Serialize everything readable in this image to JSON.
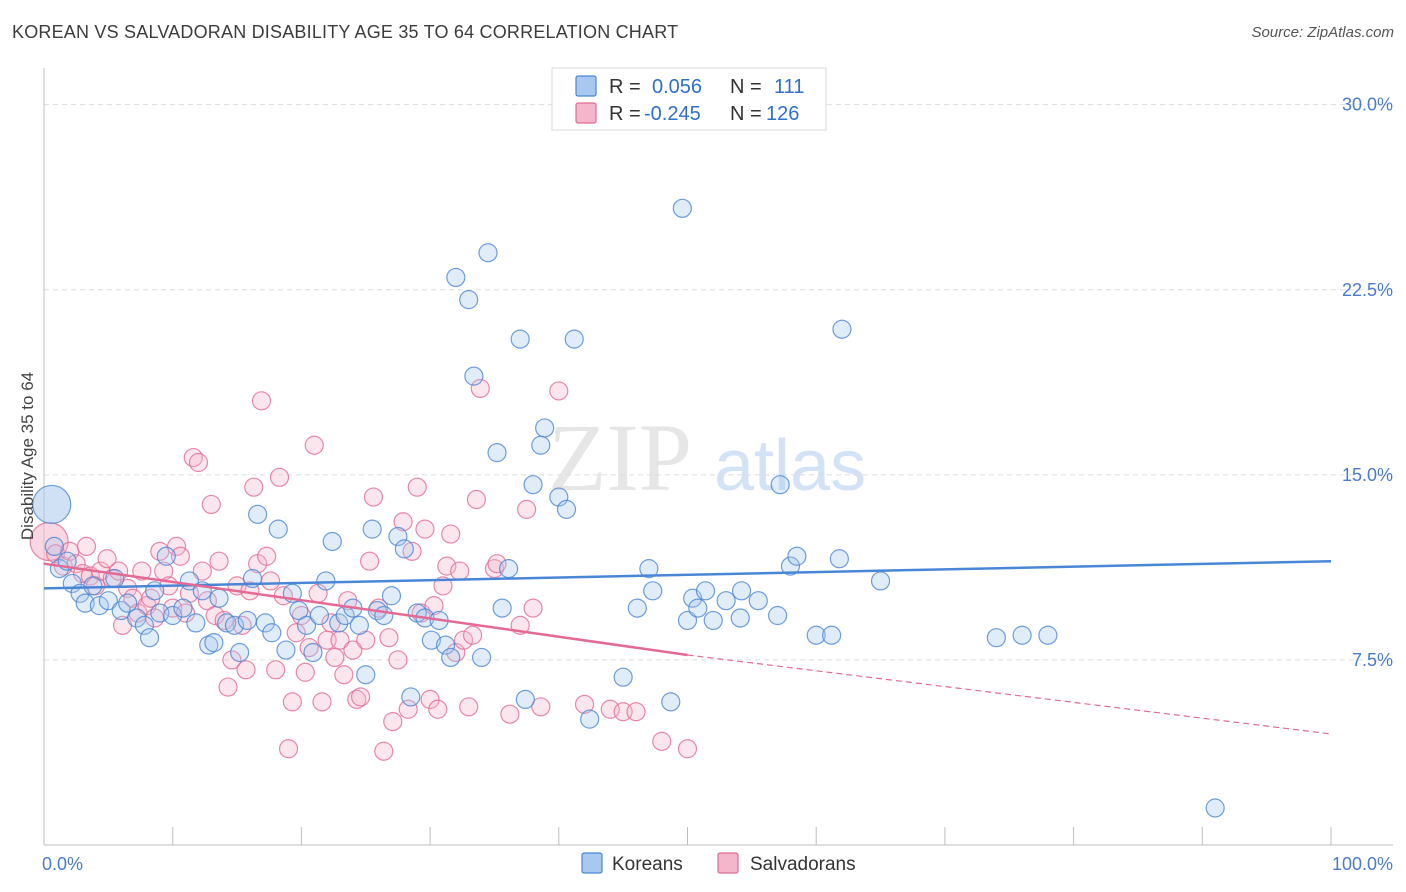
{
  "header": {
    "title": "KOREAN VS SALVADORAN DISABILITY AGE 35 TO 64 CORRELATION CHART",
    "source": "Source: ZipAtlas.com"
  },
  "watermark": {
    "zip": "ZIP",
    "atlas": "atlas"
  },
  "colors": {
    "korean": "#4a86d6",
    "korean_fill": "#a9c8ef",
    "salvadoran": "#e46a95",
    "salvadoran_fill": "#f4b6cb",
    "tick_label": "#4a7bd0",
    "grid": "#dddddd"
  },
  "legend": {
    "r_label": "R =",
    "n_label": "N =",
    "korean_r": "0.056",
    "korean_n": "111",
    "salvadoran_r": "-0.245",
    "salvadoran_n": "126"
  },
  "bottom_legend": {
    "korean": "Koreans",
    "salvadoran": "Salvadorans"
  },
  "chart_data": {
    "type": "scatter",
    "title": "KOREAN VS SALVADORAN DISABILITY AGE 35 TO 64 CORRELATION CHART",
    "xlabel": "",
    "ylabel": "Disability Age 35 to 64",
    "xlim": [
      0,
      100
    ],
    "ylim": [
      0,
      31
    ],
    "x_tick_labels": [
      "0.0%",
      "100.0%"
    ],
    "y_ticks": [
      7.5,
      15.0,
      22.5,
      30.0
    ],
    "y_tick_labels": [
      "7.5%",
      "15.0%",
      "22.5%",
      "30.0%"
    ],
    "grid": "horizontal dashed",
    "legend_position": "top-center",
    "series": [
      {
        "name": "Koreans",
        "r": 0.056,
        "n": 111,
        "trend": {
          "x": [
            0,
            100
          ],
          "y": [
            10.4,
            11.5
          ],
          "dashed_from": null
        },
        "points": [
          [
            0.6,
            13.8,
            1
          ],
          [
            0.8,
            12.1,
            0
          ],
          [
            1.2,
            11.2,
            0
          ],
          [
            1.8,
            11.5,
            0
          ],
          [
            2.2,
            10.6,
            0
          ],
          [
            2.8,
            10.2,
            0
          ],
          [
            3.2,
            9.8,
            0
          ],
          [
            3.8,
            10.5,
            0
          ],
          [
            4.3,
            9.7,
            0
          ],
          [
            5.0,
            9.9,
            0
          ],
          [
            5.5,
            10.8,
            0
          ],
          [
            6.0,
            9.5,
            0
          ],
          [
            6.5,
            9.8,
            0
          ],
          [
            7.2,
            9.2,
            0
          ],
          [
            7.8,
            8.9,
            0
          ],
          [
            8.2,
            8.4,
            0
          ],
          [
            8.6,
            10.3,
            0
          ],
          [
            9.0,
            9.4,
            0
          ],
          [
            9.5,
            11.7,
            0
          ],
          [
            10.0,
            9.3,
            0
          ],
          [
            10.8,
            9.6,
            0
          ],
          [
            11.3,
            10.7,
            0
          ],
          [
            11.8,
            9.0,
            0
          ],
          [
            12.3,
            10.3,
            0
          ],
          [
            12.8,
            8.1,
            0
          ],
          [
            13.2,
            8.2,
            0
          ],
          [
            13.6,
            10.0,
            0
          ],
          [
            14.2,
            9.0,
            0
          ],
          [
            14.8,
            8.9,
            0
          ],
          [
            15.2,
            7.8,
            0
          ],
          [
            15.8,
            9.1,
            0
          ],
          [
            16.2,
            10.8,
            0
          ],
          [
            16.6,
            13.4,
            0
          ],
          [
            17.2,
            9.0,
            0
          ],
          [
            17.7,
            8.6,
            0
          ],
          [
            18.2,
            12.8,
            0
          ],
          [
            18.8,
            7.9,
            0
          ],
          [
            19.3,
            10.2,
            0
          ],
          [
            19.8,
            9.5,
            0
          ],
          [
            20.4,
            8.9,
            0
          ],
          [
            20.9,
            7.8,
            0
          ],
          [
            21.4,
            9.3,
            0
          ],
          [
            21.9,
            10.7,
            0
          ],
          [
            22.4,
            12.3,
            0
          ],
          [
            22.9,
            9.0,
            0
          ],
          [
            23.4,
            9.3,
            0
          ],
          [
            24.0,
            9.6,
            0
          ],
          [
            24.5,
            8.9,
            0
          ],
          [
            25.0,
            6.9,
            0
          ],
          [
            25.5,
            12.8,
            0
          ],
          [
            25.9,
            9.5,
            0
          ],
          [
            26.4,
            9.3,
            0
          ],
          [
            27.0,
            10.1,
            0
          ],
          [
            27.5,
            12.5,
            0
          ],
          [
            28.0,
            12.0,
            0
          ],
          [
            28.5,
            6.0,
            0
          ],
          [
            29.0,
            9.4,
            0
          ],
          [
            29.6,
            9.2,
            0
          ],
          [
            30.1,
            8.3,
            0
          ],
          [
            30.7,
            9.1,
            0
          ],
          [
            31.2,
            8.1,
            0
          ],
          [
            31.6,
            7.6,
            0
          ],
          [
            32.0,
            23.0,
            0
          ],
          [
            33.0,
            22.1,
            0
          ],
          [
            33.4,
            19.0,
            0
          ],
          [
            34.0,
            7.6,
            0
          ],
          [
            34.5,
            24.0,
            0
          ],
          [
            35.2,
            15.9,
            0
          ],
          [
            35.6,
            9.6,
            0
          ],
          [
            36.1,
            11.2,
            0
          ],
          [
            37.0,
            20.5,
            0
          ],
          [
            37.4,
            5.9,
            0
          ],
          [
            38.0,
            14.6,
            0
          ],
          [
            38.6,
            16.2,
            0
          ],
          [
            38.9,
            16.9,
            0
          ],
          [
            40.0,
            14.1,
            0
          ],
          [
            40.6,
            13.6,
            0
          ],
          [
            41.2,
            20.5,
            0
          ],
          [
            42.4,
            5.1,
            0
          ],
          [
            45.0,
            6.8,
            0
          ],
          [
            46.1,
            9.6,
            0
          ],
          [
            47.0,
            11.2,
            0
          ],
          [
            47.3,
            10.3,
            0
          ],
          [
            48.7,
            5.8,
            0
          ],
          [
            49.6,
            25.8,
            0
          ],
          [
            50.0,
            9.1,
            0
          ],
          [
            50.4,
            10.0,
            0
          ],
          [
            50.8,
            9.6,
            0
          ],
          [
            51.4,
            10.3,
            0
          ],
          [
            52.0,
            9.1,
            0
          ],
          [
            53.0,
            9.9,
            0
          ],
          [
            54.1,
            9.2,
            0
          ],
          [
            54.2,
            10.3,
            0
          ],
          [
            55.5,
            9.9,
            0
          ],
          [
            57.0,
            9.3,
            0
          ],
          [
            57.2,
            14.6,
            0
          ],
          [
            58.0,
            11.3,
            0
          ],
          [
            58.5,
            11.7,
            0
          ],
          [
            60.0,
            8.5,
            0
          ],
          [
            61.2,
            8.5,
            0
          ],
          [
            61.8,
            11.6,
            0
          ],
          [
            62.0,
            20.9,
            0
          ],
          [
            65.0,
            10.7,
            0
          ],
          [
            74.0,
            8.4,
            0
          ],
          [
            76.0,
            8.5,
            0
          ],
          [
            78.0,
            8.5,
            0
          ],
          [
            91.0,
            1.5,
            0
          ]
        ]
      },
      {
        "name": "Salvadorans",
        "r": -0.245,
        "n": 126,
        "trend": {
          "x": [
            0,
            50,
            100
          ],
          "y": [
            11.4,
            7.7,
            4.5
          ],
          "dashed_from": 50
        },
        "points": [
          [
            0.4,
            12.3,
            1
          ],
          [
            0.9,
            11.8,
            0
          ],
          [
            1.5,
            11.3,
            0
          ],
          [
            2.0,
            11.9,
            0
          ],
          [
            2.5,
            11.4,
            0
          ],
          [
            3.0,
            11.0,
            0
          ],
          [
            3.3,
            12.1,
            0
          ],
          [
            3.6,
            10.9,
            0
          ],
          [
            4.0,
            10.5,
            0
          ],
          [
            4.4,
            11.1,
            0
          ],
          [
            4.9,
            11.6,
            0
          ],
          [
            5.3,
            10.8,
            0
          ],
          [
            5.8,
            11.1,
            0
          ],
          [
            6.1,
            8.9,
            0
          ],
          [
            6.5,
            10.4,
            0
          ],
          [
            6.9,
            10.0,
            0
          ],
          [
            7.3,
            9.4,
            0
          ],
          [
            7.6,
            11.1,
            0
          ],
          [
            8.0,
            9.7,
            0
          ],
          [
            8.3,
            10.0,
            0
          ],
          [
            8.6,
            9.2,
            0
          ],
          [
            9.0,
            11.9,
            0
          ],
          [
            9.3,
            11.1,
            0
          ],
          [
            9.7,
            10.5,
            0
          ],
          [
            10.0,
            9.6,
            0
          ],
          [
            10.3,
            12.1,
            0
          ],
          [
            10.6,
            11.7,
            0
          ],
          [
            11.0,
            9.4,
            0
          ],
          [
            11.3,
            10.2,
            0
          ],
          [
            11.6,
            15.7,
            0
          ],
          [
            12.0,
            15.5,
            0
          ],
          [
            12.3,
            11.1,
            0
          ],
          [
            12.7,
            9.9,
            0
          ],
          [
            13.0,
            13.8,
            0
          ],
          [
            13.3,
            9.3,
            0
          ],
          [
            13.6,
            11.5,
            0
          ],
          [
            14.0,
            9.1,
            0
          ],
          [
            14.3,
            6.4,
            0
          ],
          [
            14.6,
            7.5,
            0
          ],
          [
            15.0,
            10.5,
            0
          ],
          [
            15.4,
            8.9,
            0
          ],
          [
            15.7,
            7.1,
            0
          ],
          [
            16.0,
            10.3,
            0
          ],
          [
            16.3,
            14.5,
            0
          ],
          [
            16.6,
            11.4,
            0
          ],
          [
            16.9,
            18.0,
            0
          ],
          [
            17.3,
            11.7,
            0
          ],
          [
            17.6,
            10.7,
            0
          ],
          [
            18.0,
            7.1,
            0
          ],
          [
            18.3,
            14.9,
            0
          ],
          [
            18.6,
            10.1,
            0
          ],
          [
            19.0,
            3.9,
            0
          ],
          [
            19.3,
            5.8,
            0
          ],
          [
            19.6,
            8.6,
            0
          ],
          [
            20.0,
            9.3,
            0
          ],
          [
            20.3,
            7.0,
            0
          ],
          [
            20.6,
            8.0,
            0
          ],
          [
            21.0,
            16.2,
            0
          ],
          [
            21.3,
            10.2,
            0
          ],
          [
            21.6,
            5.8,
            0
          ],
          [
            22.0,
            8.3,
            0
          ],
          [
            22.3,
            9.0,
            0
          ],
          [
            22.6,
            7.6,
            0
          ],
          [
            23.0,
            8.3,
            0
          ],
          [
            23.3,
            6.9,
            0
          ],
          [
            23.6,
            9.9,
            0
          ],
          [
            24.0,
            7.9,
            0
          ],
          [
            24.3,
            5.9,
            0
          ],
          [
            24.6,
            6.0,
            0
          ],
          [
            25.0,
            8.3,
            0
          ],
          [
            25.3,
            11.5,
            0
          ],
          [
            25.6,
            14.1,
            0
          ],
          [
            26.0,
            9.6,
            0
          ],
          [
            26.4,
            3.8,
            0
          ],
          [
            26.8,
            8.4,
            0
          ],
          [
            27.1,
            5.0,
            0
          ],
          [
            27.5,
            7.5,
            0
          ],
          [
            27.9,
            13.1,
            0
          ],
          [
            28.3,
            5.5,
            0
          ],
          [
            28.6,
            11.9,
            0
          ],
          [
            29.0,
            14.5,
            0
          ],
          [
            29.3,
            9.4,
            0
          ],
          [
            29.6,
            12.8,
            0
          ],
          [
            30.0,
            5.9,
            0
          ],
          [
            30.3,
            9.7,
            0
          ],
          [
            30.6,
            5.5,
            0
          ],
          [
            31.0,
            10.5,
            0
          ],
          [
            31.3,
            11.3,
            0
          ],
          [
            31.6,
            12.6,
            0
          ],
          [
            32.0,
            7.8,
            0
          ],
          [
            32.3,
            11.1,
            0
          ],
          [
            32.6,
            8.3,
            0
          ],
          [
            33.0,
            5.6,
            0
          ],
          [
            33.3,
            8.5,
            0
          ],
          [
            33.6,
            14.0,
            0
          ],
          [
            33.9,
            18.5,
            0
          ],
          [
            35.0,
            11.2,
            0
          ],
          [
            35.2,
            11.4,
            0
          ],
          [
            36.2,
            5.3,
            0
          ],
          [
            37.0,
            8.9,
            0
          ],
          [
            37.5,
            13.6,
            0
          ],
          [
            38.0,
            9.6,
            0
          ],
          [
            38.6,
            5.6,
            0
          ],
          [
            40.0,
            18.4,
            0
          ],
          [
            42.0,
            5.7,
            0
          ],
          [
            44.0,
            5.5,
            0
          ],
          [
            45.0,
            5.4,
            0
          ],
          [
            46.0,
            5.4,
            0
          ],
          [
            48.0,
            4.2,
            0
          ],
          [
            50.0,
            3.9,
            0
          ]
        ]
      }
    ]
  }
}
